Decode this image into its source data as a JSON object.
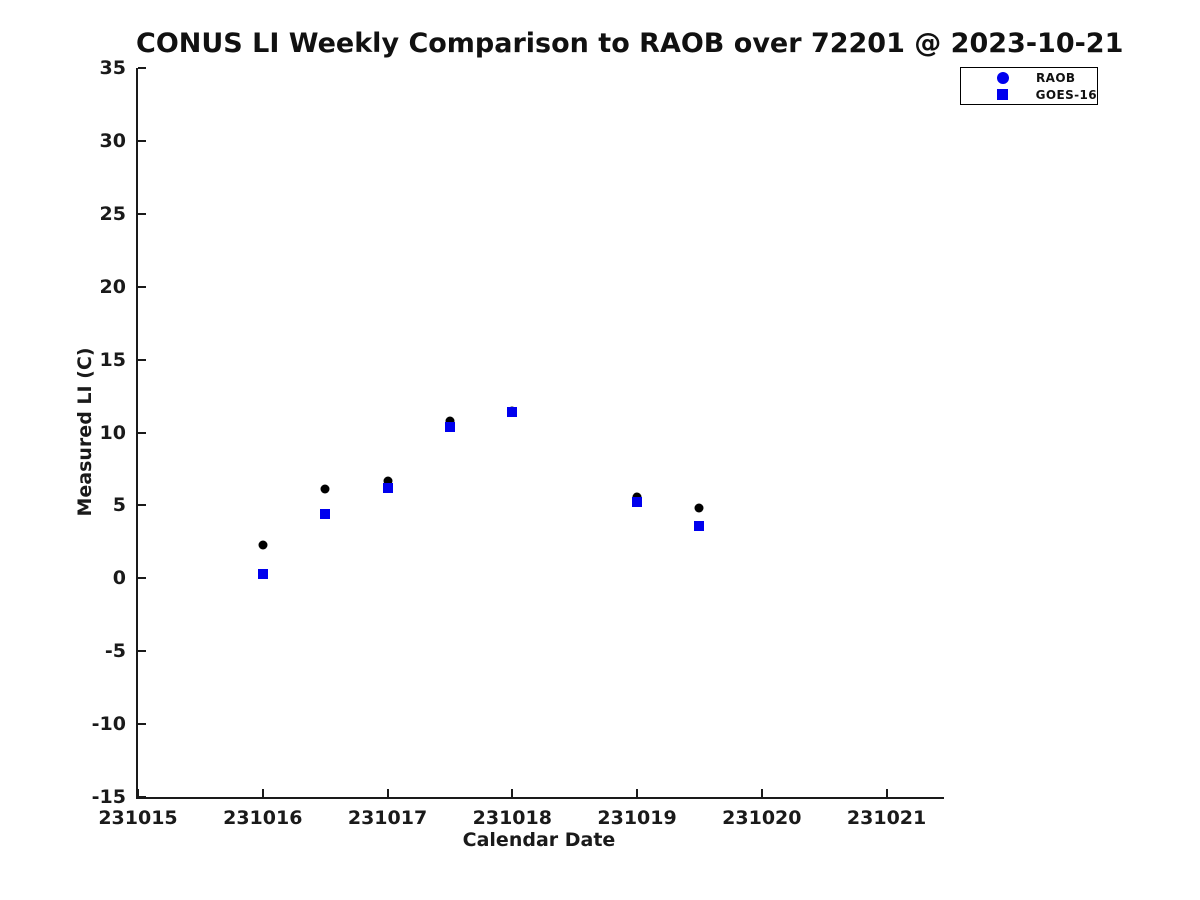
{
  "chart_data": {
    "type": "scatter",
    "title": "CONUS LI Weekly Comparison to RAOB over 72201 @ 2023-10-21",
    "xlabel": "Calendar Date",
    "ylabel": "Measured LI (C)",
    "xlim": [
      231015,
      231021.46
    ],
    "ylim": [
      -15,
      35
    ],
    "x_ticks": [
      231015,
      231016,
      231017,
      231018,
      231019,
      231020,
      231021
    ],
    "y_ticks": [
      35,
      30,
      25,
      20,
      15,
      10,
      5,
      0,
      -5,
      -10,
      -15
    ],
    "grid": false,
    "legend_position": "top-right",
    "series": [
      {
        "name": "RAOB",
        "marker": "circle",
        "plot_color": "#000000",
        "legend_color": "#0000ee",
        "points": [
          [
            231016,
            2.3
          ],
          [
            231016.5,
            6.1
          ],
          [
            231017,
            6.7
          ],
          [
            231017.5,
            10.8
          ],
          [
            231018,
            11.5
          ],
          [
            231019,
            5.6
          ],
          [
            231019.5,
            4.8
          ]
        ]
      },
      {
        "name": "GOES-16",
        "marker": "square",
        "plot_color": "#0000ee",
        "legend_color": "#0000ee",
        "points": [
          [
            231016,
            0.3
          ],
          [
            231016.5,
            4.4
          ],
          [
            231017,
            6.2
          ],
          [
            231017.5,
            10.4
          ],
          [
            231018,
            11.4
          ],
          [
            231019,
            5.2
          ],
          [
            231019.5,
            3.6
          ]
        ]
      }
    ]
  },
  "colors": {
    "accent_blue": "#0000ee",
    "marker_black": "#000000",
    "text": "#1a1a1a"
  }
}
